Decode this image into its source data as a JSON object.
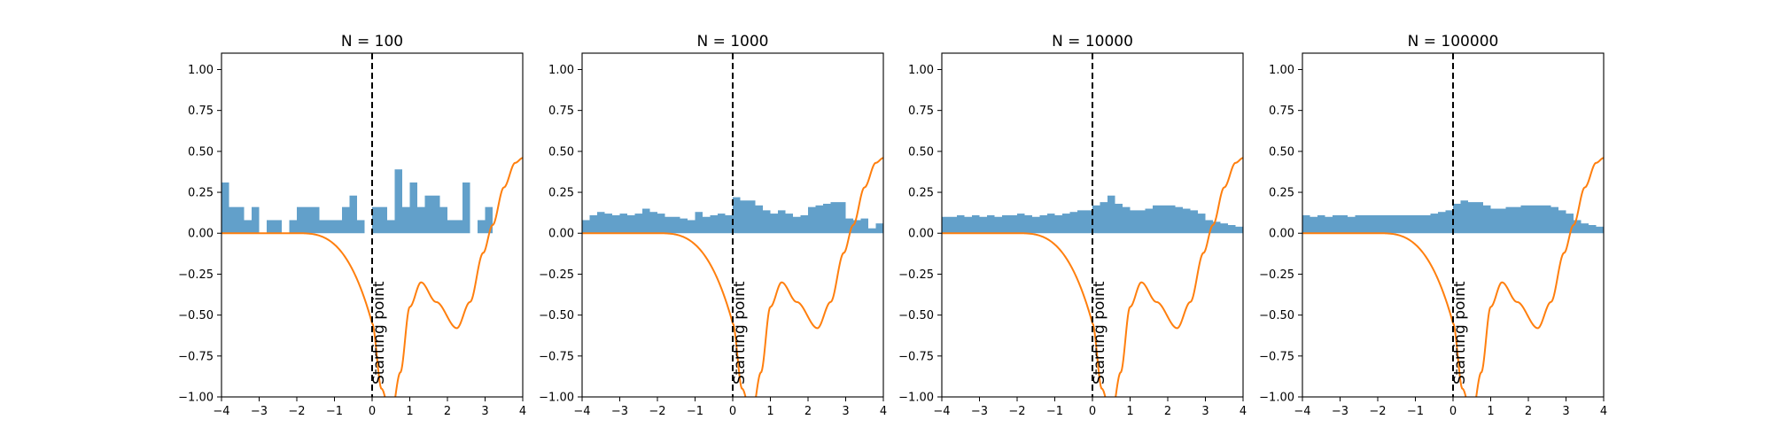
{
  "chart_data": [
    {
      "type": "bar",
      "title": "N = 100",
      "xlim": [
        -4,
        4
      ],
      "ylim": [
        -1.0,
        1.1
      ],
      "xticks": [
        "−4",
        "−3",
        "−2",
        "−1",
        "0",
        "1",
        "2",
        "3",
        "4"
      ],
      "yticks": [
        "−1.00",
        "−0.75",
        "−0.50",
        "−0.25",
        "0.00",
        "0.25",
        "0.50",
        "0.75",
        "1.00"
      ],
      "bin_width": 0.2,
      "bin_start": -4,
      "values": [
        0.31,
        0.16,
        0.16,
        0.08,
        0.16,
        0,
        0.08,
        0.08,
        0,
        0.08,
        0.16,
        0.16,
        0.16,
        0.08,
        0.08,
        0.08,
        0.16,
        0.23,
        0.08,
        0,
        0.16,
        0.16,
        0.08,
        0.39,
        0.16,
        0.31,
        0.16,
        0.23,
        0.23,
        0.16,
        0.08,
        0.08,
        0.31,
        0,
        0.08,
        0.16,
        0,
        0,
        0,
        0
      ],
      "annotation": "Starting point",
      "vline_x": 0
    },
    {
      "type": "bar",
      "title": "N = 1000",
      "xlim": [
        -4,
        4
      ],
      "ylim": [
        -1.0,
        1.1
      ],
      "xticks": [
        "−4",
        "−3",
        "−2",
        "−1",
        "0",
        "1",
        "2",
        "3",
        "4"
      ],
      "yticks": [
        "−1.00",
        "−0.75",
        "−0.50",
        "−0.25",
        "0.00",
        "0.25",
        "0.50",
        "0.75",
        "1.00"
      ],
      "bin_width": 0.2,
      "bin_start": -4,
      "values": [
        0.08,
        0.11,
        0.13,
        0.12,
        0.11,
        0.12,
        0.11,
        0.12,
        0.15,
        0.13,
        0.12,
        0.1,
        0.1,
        0.09,
        0.08,
        0.13,
        0.1,
        0.11,
        0.12,
        0.11,
        0.22,
        0.2,
        0.2,
        0.17,
        0.14,
        0.12,
        0.14,
        0.12,
        0.1,
        0.11,
        0.16,
        0.17,
        0.18,
        0.19,
        0.19,
        0.09,
        0.08,
        0.09,
        0.03,
        0.06
      ],
      "annotation": "Starting point",
      "vline_x": 0
    },
    {
      "type": "bar",
      "title": "N = 10000",
      "xlim": [
        -4,
        4
      ],
      "ylim": [
        -1.0,
        1.1
      ],
      "xticks": [
        "−4",
        "−3",
        "−2",
        "−1",
        "0",
        "1",
        "2",
        "3",
        "4"
      ],
      "yticks": [
        "−1.00",
        "−0.75",
        "−0.50",
        "−0.25",
        "0.00",
        "0.25",
        "0.50",
        "0.75",
        "1.00"
      ],
      "bin_width": 0.2,
      "bin_start": -4,
      "values": [
        0.1,
        0.1,
        0.11,
        0.1,
        0.11,
        0.1,
        0.11,
        0.1,
        0.11,
        0.11,
        0.12,
        0.11,
        0.1,
        0.11,
        0.12,
        0.11,
        0.12,
        0.13,
        0.14,
        0.14,
        0.17,
        0.19,
        0.23,
        0.18,
        0.16,
        0.14,
        0.14,
        0.15,
        0.17,
        0.17,
        0.17,
        0.16,
        0.15,
        0.14,
        0.12,
        0.08,
        0.07,
        0.06,
        0.05,
        0.04
      ],
      "annotation": "Starting point",
      "vline_x": 0
    },
    {
      "type": "bar",
      "title": "N = 100000",
      "xlim": [
        -4,
        4
      ],
      "ylim": [
        -1.0,
        1.1
      ],
      "xticks": [
        "−4",
        "−3",
        "−2",
        "−1",
        "0",
        "1",
        "2",
        "3",
        "4"
      ],
      "yticks": [
        "−1.00",
        "−0.75",
        "−0.50",
        "−0.25",
        "0.00",
        "0.25",
        "0.50",
        "0.75",
        "1.00"
      ],
      "bin_width": 0.2,
      "bin_start": -4,
      "values": [
        0.11,
        0.1,
        0.11,
        0.1,
        0.11,
        0.11,
        0.1,
        0.11,
        0.11,
        0.11,
        0.11,
        0.11,
        0.11,
        0.11,
        0.11,
        0.11,
        0.11,
        0.12,
        0.13,
        0.14,
        0.18,
        0.2,
        0.19,
        0.19,
        0.17,
        0.15,
        0.15,
        0.16,
        0.16,
        0.17,
        0.17,
        0.17,
        0.17,
        0.16,
        0.14,
        0.12,
        0.08,
        0.06,
        0.05,
        0.04
      ],
      "annotation": "Starting point",
      "vline_x": 0
    }
  ]
}
